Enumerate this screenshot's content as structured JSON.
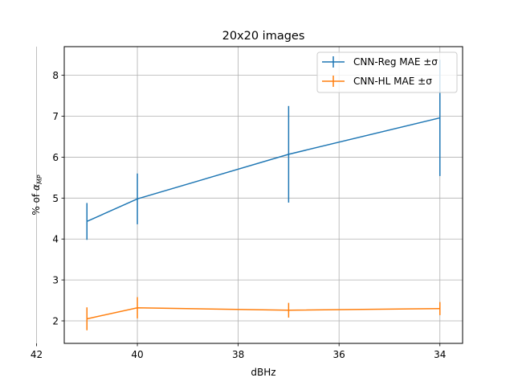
{
  "chart_data": {
    "type": "line",
    "title": "20x20 images",
    "xlabel": "dBHz",
    "ylabel_prefix": "% of ",
    "ylabel_symbol": "α",
    "ylabel_subscript": "MP",
    "x": [
      41,
      40,
      37,
      34
    ],
    "xlim": [
      41.45,
      33.55
    ],
    "ylim": [
      1.45,
      8.7
    ],
    "xticks": [
      42,
      40,
      38,
      36,
      34
    ],
    "yticks": [
      2,
      3,
      4,
      5,
      6,
      7,
      8
    ],
    "grid": true,
    "legend_position": "top-right",
    "series": [
      {
        "name": "CNN-Reg MAE ±σ",
        "color": "#1f77b4",
        "values": [
          4.43,
          4.98,
          6.07,
          6.96
        ],
        "errors": [
          0.45,
          0.62,
          1.18,
          1.42
        ]
      },
      {
        "name": "CNN-HL MAE ±σ",
        "color": "#ff7f0e",
        "values": [
          2.05,
          2.32,
          2.26,
          2.3
        ],
        "errors": [
          0.28,
          0.26,
          0.18,
          0.16
        ]
      }
    ]
  }
}
